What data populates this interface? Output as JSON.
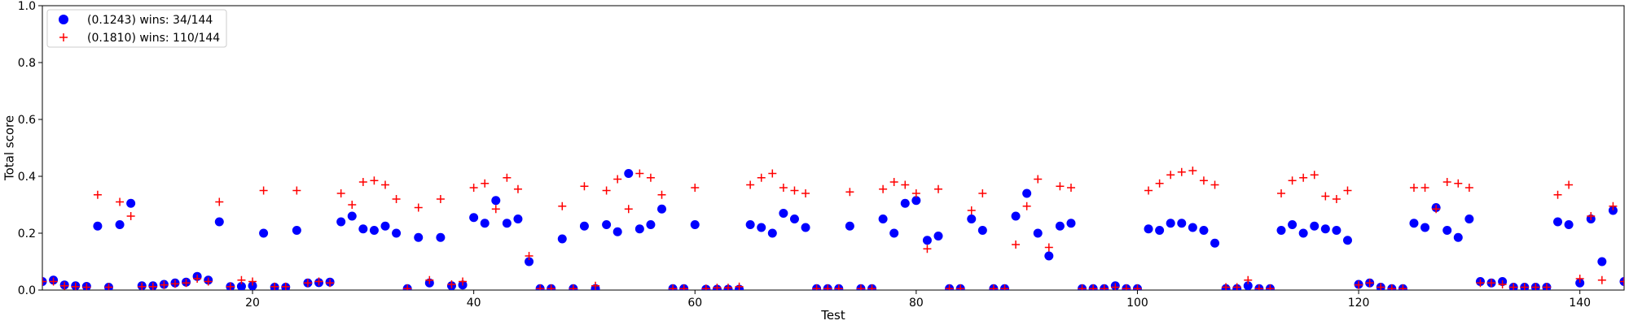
{
  "chart_data": {
    "type": "scatter",
    "xlabel": "Test",
    "ylabel": "Total score",
    "xlim": [
      1,
      144
    ],
    "ylim": [
      0,
      1.0
    ],
    "x_ticks": [
      20,
      40,
      60,
      80,
      100,
      120,
      140
    ],
    "x_tick_labels": [
      "20",
      "40",
      "60",
      "80",
      "100",
      "120",
      "140"
    ],
    "y_ticks": [
      0,
      0.2,
      0.4,
      0.6,
      0.8,
      1.0
    ],
    "y_tick_labels": [
      "0.0",
      "0.2",
      "0.4",
      "0.6",
      "0.8",
      "1.0"
    ],
    "grid": false,
    "legend_position": "top-left",
    "legend": {
      "entries": [
        "(0.1243) wins: 34/144",
        "(0.1810) wins: 110/144"
      ]
    },
    "series": [
      {
        "name": "(0.1243) wins: 34/144",
        "marker": "circle",
        "color": "#0000ff",
        "values": [
          0.03,
          0.035,
          0.018,
          0.015,
          0.013,
          0.225,
          0.01,
          0.23,
          0.305,
          0.015,
          0.015,
          0.02,
          0.025,
          0.028,
          0.048,
          0.035,
          0.24,
          0.012,
          0.013,
          0.015,
          0.2,
          0.01,
          0.01,
          0.21,
          0.025,
          0.026,
          0.028,
          0.24,
          0.26,
          0.215,
          0.21,
          0.225,
          0.2,
          0.005,
          0.185,
          0.025,
          0.185,
          0.015,
          0.018,
          0.255,
          0.235,
          0.315,
          0.235,
          0.25,
          0.1,
          0.005,
          0.005,
          0.18,
          0.005,
          0.225,
          0.005,
          0.23,
          0.205,
          0.41,
          0.215,
          0.23,
          0.285,
          0.005,
          0.005,
          0.23,
          0.003,
          0.003,
          0.003,
          0.003,
          0.23,
          0.22,
          0.2,
          0.27,
          0.25,
          0.22,
          0.005,
          0.005,
          0.005,
          0.225,
          0.005,
          0.005,
          0.25,
          0.2,
          0.305,
          0.315,
          0.175,
          0.19,
          0.005,
          0.005,
          0.25,
          0.21,
          0.005,
          0.005,
          0.26,
          0.34,
          0.2,
          0.12,
          0.225,
          0.235,
          0.005,
          0.005,
          0.005,
          0.015,
          0.005,
          0.005,
          0.215,
          0.21,
          0.235,
          0.235,
          0.22,
          0.21,
          0.165,
          0.005,
          0.005,
          0.015,
          0.005,
          0.005,
          0.21,
          0.23,
          0.2,
          0.225,
          0.215,
          0.21,
          0.175,
          0.02,
          0.025,
          0.01,
          0.005,
          0.005,
          0.235,
          0.22,
          0.29,
          0.21,
          0.185,
          0.25,
          0.03,
          0.025,
          0.03,
          0.01,
          0.01,
          0.01,
          0.01,
          0.24,
          0.23,
          0.025,
          0.25,
          0.1,
          0.28,
          0.03
        ]
      },
      {
        "name": "(0.1810) wins: 110/144",
        "marker": "plus",
        "color": "#ff0000",
        "values": [
          0.03,
          0.03,
          0.015,
          0.012,
          0.01,
          0.335,
          0.01,
          0.31,
          0.26,
          0.012,
          0.012,
          0.018,
          0.022,
          0.025,
          0.04,
          0.03,
          0.31,
          0.012,
          0.035,
          0.03,
          0.35,
          0.012,
          0.012,
          0.35,
          0.025,
          0.03,
          0.025,
          0.34,
          0.3,
          0.38,
          0.385,
          0.37,
          0.32,
          0.005,
          0.29,
          0.035,
          0.32,
          0.02,
          0.03,
          0.36,
          0.375,
          0.285,
          0.395,
          0.355,
          0.12,
          0.005,
          0.005,
          0.295,
          0.005,
          0.365,
          0.015,
          0.35,
          0.39,
          0.285,
          0.41,
          0.395,
          0.335,
          0.005,
          0.005,
          0.36,
          0.005,
          0.008,
          0.008,
          0.012,
          0.37,
          0.395,
          0.41,
          0.36,
          0.35,
          0.34,
          0.005,
          0.005,
          0.005,
          0.345,
          0.005,
          0.005,
          0.355,
          0.38,
          0.37,
          0.34,
          0.145,
          0.355,
          0.005,
          0.005,
          0.28,
          0.34,
          0.005,
          0.005,
          0.16,
          0.295,
          0.39,
          0.15,
          0.365,
          0.36,
          0.005,
          0.005,
          0.005,
          0.01,
          0.005,
          0.005,
          0.35,
          0.375,
          0.405,
          0.415,
          0.42,
          0.385,
          0.37,
          0.01,
          0.01,
          0.035,
          0.005,
          0.005,
          0.34,
          0.385,
          0.395,
          0.405,
          0.33,
          0.32,
          0.35,
          0.018,
          0.025,
          0.01,
          0.005,
          0.005,
          0.36,
          0.36,
          0.285,
          0.38,
          0.375,
          0.36,
          0.025,
          0.025,
          0.02,
          0.01,
          0.01,
          0.01,
          0.01,
          0.335,
          0.37,
          0.04,
          0.26,
          0.035,
          0.295,
          0.03
        ]
      }
    ]
  }
}
